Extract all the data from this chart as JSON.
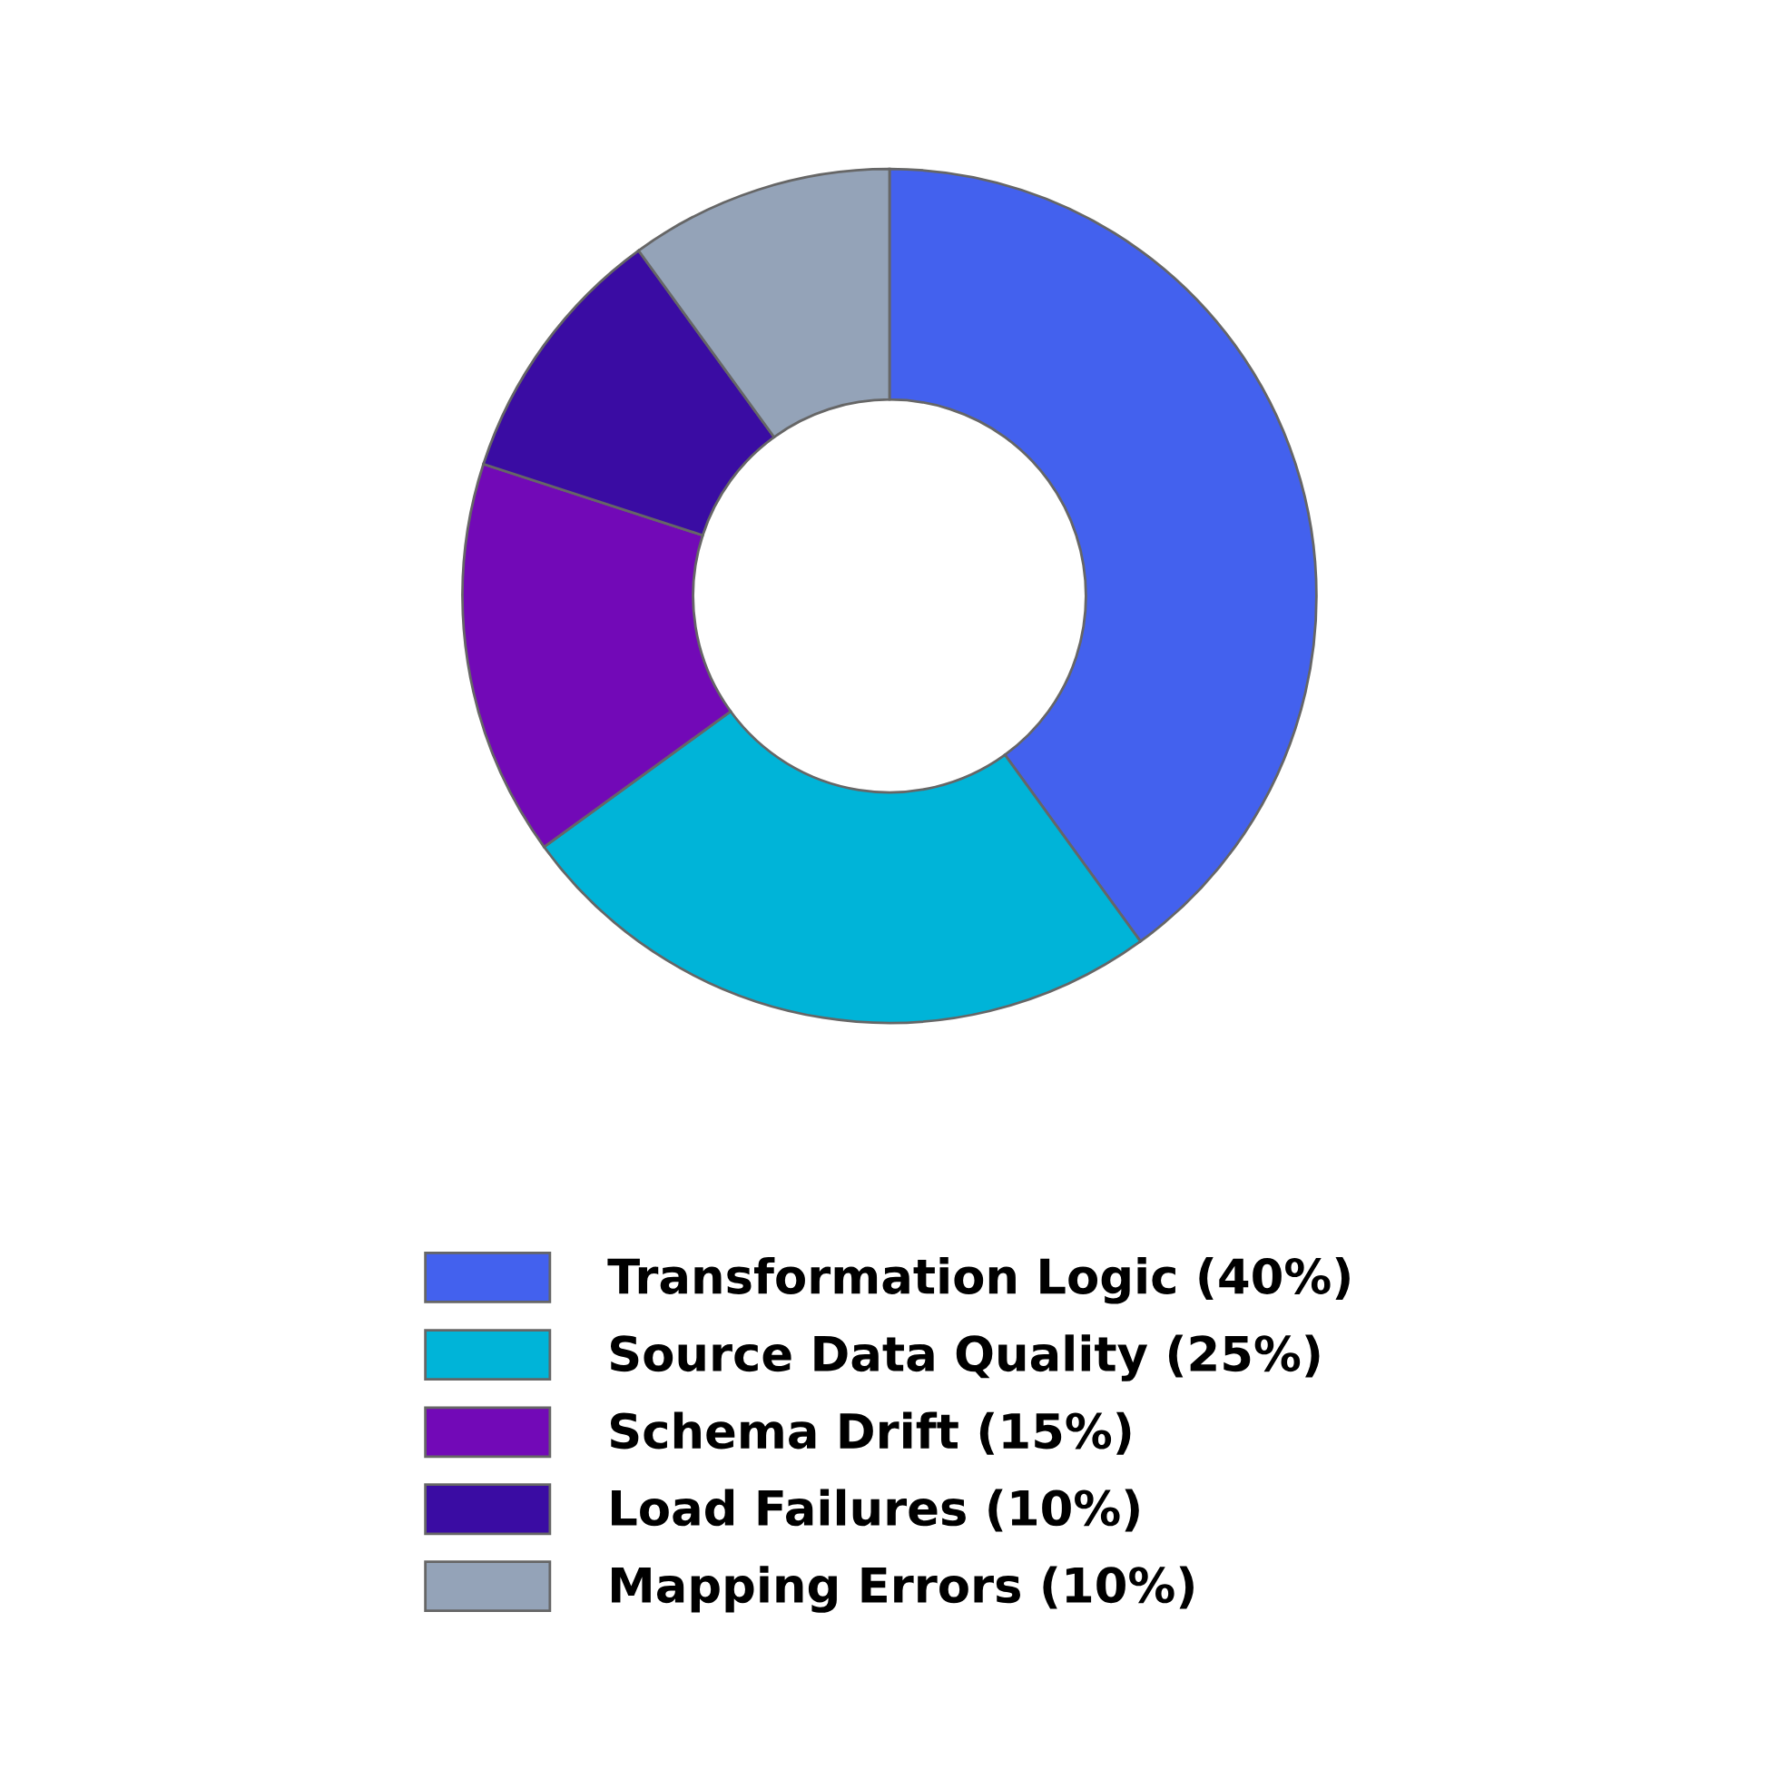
{
  "chart_data": {
    "type": "donut",
    "categories": [
      "Transformation Logic (40%)",
      "Source Data Quality (25%)",
      "Schema Drift (15%)",
      "Load Failures (10%)",
      "Mapping Errors (10%)"
    ],
    "values": [
      40,
      25,
      15,
      10,
      10
    ],
    "colors": [
      "#4361ee",
      "#00b4d8",
      "#7209b7",
      "#3a0ca3",
      "#94a3b8"
    ],
    "legend": "bottom"
  }
}
